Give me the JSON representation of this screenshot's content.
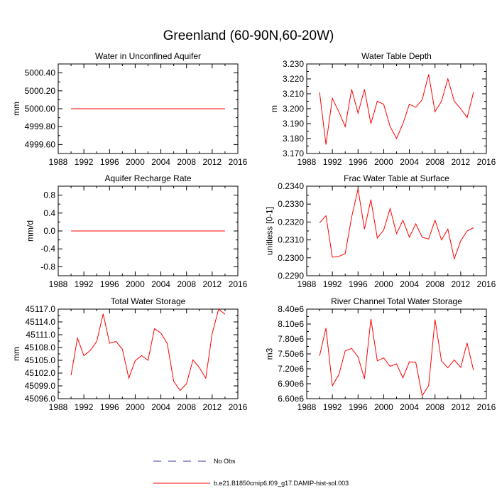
{
  "figure": {
    "title": "Greenland (60-90N,60-20W)",
    "legend": [
      {
        "label": "No Obs",
        "style": "dashed",
        "color": "#3333aa"
      },
      {
        "label": "b.e21.B1850cmip6.f09_g17.DAMIP-hist-sol.003",
        "style": "solid",
        "color": "#ff0000"
      }
    ]
  },
  "chart_data": [
    {
      "type": "line",
      "title": "Water in Unconfined Aquifer",
      "xlabel": "",
      "ylabel": "mm",
      "xlim": [
        1988,
        2016
      ],
      "ylim": [
        4999.5,
        5000.5
      ],
      "xticks": [
        1988,
        1992,
        1996,
        2000,
        2004,
        2008,
        2012,
        2016
      ],
      "yticks": [
        4999.6,
        4999.8,
        5000.0,
        5000.2,
        5000.4
      ],
      "ytick_labels": [
        "4999.60",
        "4999.80",
        "5000.00",
        "5000.20",
        "5000.40"
      ],
      "series": [
        {
          "color": "#ff0000",
          "x": [
            1990,
            2014
          ],
          "y": [
            5000.0,
            5000.0
          ]
        }
      ]
    },
    {
      "type": "line",
      "title": "Water Table Depth",
      "xlabel": "",
      "ylabel": "m",
      "xlim": [
        1988,
        2016
      ],
      "ylim": [
        3.17,
        3.23
      ],
      "xticks": [
        1988,
        1992,
        1996,
        2000,
        2004,
        2008,
        2012,
        2016
      ],
      "yticks": [
        3.17,
        3.18,
        3.19,
        3.2,
        3.21,
        3.22,
        3.23
      ],
      "ytick_labels": [
        "3.170",
        "3.180",
        "3.190",
        "3.200",
        "3.210",
        "3.220",
        "3.230"
      ],
      "series": [
        {
          "color": "#ff0000",
          "x": [
            1990,
            1991,
            1992,
            1993,
            1994,
            1995,
            1996,
            1997,
            1998,
            1999,
            2000,
            2001,
            2002,
            2003,
            2004,
            2005,
            2006,
            2007,
            2008,
            2009,
            2010,
            2011,
            2012,
            2013,
            2014
          ],
          "y": [
            3.211,
            3.176,
            3.207,
            3.198,
            3.188,
            3.213,
            3.197,
            3.213,
            3.19,
            3.205,
            3.203,
            3.188,
            3.18,
            3.19,
            3.203,
            3.201,
            3.206,
            3.223,
            3.198,
            3.205,
            3.22,
            3.205,
            3.2,
            3.194,
            3.211
          ]
        }
      ]
    },
    {
      "type": "line",
      "title": "Aquifer Recharge Rate",
      "xlabel": "",
      "ylabel": "mm/d",
      "xlim": [
        1988,
        2016
      ],
      "ylim": [
        -1.0,
        1.0
      ],
      "xticks": [
        1988,
        1992,
        1996,
        2000,
        2004,
        2008,
        2012,
        2016
      ],
      "yticks": [
        -0.8,
        -0.4,
        0.0,
        0.4,
        0.8
      ],
      "ytick_labels": [
        "-0.8",
        "-0.4",
        "0.0",
        "0.4",
        "0.8"
      ],
      "series": [
        {
          "color": "#ff0000",
          "x": [
            1990,
            2014
          ],
          "y": [
            0.0,
            0.0
          ]
        }
      ]
    },
    {
      "type": "line",
      "title": "Frac Water Table at Surface",
      "xlabel": "",
      "ylabel": "unitless [0-1]",
      "xlim": [
        1988,
        2016
      ],
      "ylim": [
        0.229,
        0.234
      ],
      "xticks": [
        1988,
        1992,
        1996,
        2000,
        2004,
        2008,
        2012,
        2016
      ],
      "yticks": [
        0.229,
        0.23,
        0.231,
        0.232,
        0.233,
        0.234
      ],
      "ytick_labels": [
        "0.2290",
        "0.2300",
        "0.2310",
        "0.2320",
        "0.2330",
        "0.2340"
      ],
      "series": [
        {
          "color": "#ff0000",
          "x": [
            1990,
            1991,
            1992,
            1993,
            1994,
            1995,
            1996,
            1997,
            1998,
            1999,
            2000,
            2001,
            2002,
            2003,
            2004,
            2005,
            2006,
            2007,
            2008,
            2009,
            2010,
            2011,
            2012,
            2013,
            2014
          ],
          "y": [
            0.23195,
            0.23235,
            0.23003,
            0.23008,
            0.23023,
            0.23228,
            0.23385,
            0.2316,
            0.23325,
            0.2311,
            0.23155,
            0.23275,
            0.23135,
            0.2321,
            0.23115,
            0.2319,
            0.23115,
            0.23105,
            0.2321,
            0.231,
            0.2316,
            0.22995,
            0.23095,
            0.2315,
            0.23168
          ]
        }
      ]
    },
    {
      "type": "line",
      "title": "Total Water Storage",
      "xlabel": "",
      "ylabel": "mm",
      "xlim": [
        1988,
        2016
      ],
      "ylim": [
        45096,
        45117
      ],
      "xticks": [
        1988,
        1992,
        1996,
        2000,
        2004,
        2008,
        2012,
        2016
      ],
      "yticks": [
        45096,
        45099,
        45102,
        45105,
        45108,
        45111,
        45114,
        45117
      ],
      "ytick_labels": [
        "45096.0",
        "45099.0",
        "45102.0",
        "45105.0",
        "45108.0",
        "45111.0",
        "45114.0",
        "45117.0"
      ],
      "series": [
        {
          "color": "#ff0000",
          "x": [
            1990,
            1991,
            1992,
            1993,
            1994,
            1995,
            1996,
            1997,
            1998,
            1999,
            2000,
            2001,
            2002,
            2003,
            2004,
            2005,
            2006,
            2007,
            2008,
            2009,
            2010,
            2011,
            2012,
            2013,
            2014
          ],
          "y": [
            45101.5,
            45110.2,
            45106.1,
            45107.3,
            45109.4,
            45115.9,
            45109.0,
            45109.4,
            45107.6,
            45100.8,
            45104.9,
            45106.1,
            45105.0,
            45112.4,
            45111.4,
            45108.9,
            45100.1,
            45097.9,
            45099.5,
            45105.1,
            45103.3,
            45100.8,
            45111.3,
            45117.0,
            45115.8
          ]
        }
      ]
    },
    {
      "type": "line",
      "title": "River Channel Total Water Storage",
      "xlabel": "",
      "ylabel": "m3",
      "xlim": [
        1988,
        2016
      ],
      "ylim": [
        6600000,
        8400000
      ],
      "xticks": [
        1988,
        1992,
        1996,
        2000,
        2004,
        2008,
        2012,
        2016
      ],
      "yticks": [
        6600000,
        6900000,
        7200000,
        7500000,
        7800000,
        8100000,
        8400000
      ],
      "ytick_labels": [
        "6.60e6",
        "6.90e6",
        "7.20e6",
        "7.50e6",
        "7.80e6",
        "8.10e6",
        "8.40e6"
      ],
      "series": [
        {
          "color": "#ff0000",
          "x": [
            1990,
            1991,
            1992,
            1993,
            1994,
            1995,
            1996,
            1997,
            1998,
            1999,
            2000,
            2001,
            2002,
            2003,
            2004,
            2005,
            2006,
            2007,
            2008,
            2009,
            2010,
            2011,
            2012,
            2013,
            2014
          ],
          "y": [
            7460000,
            8020000,
            6860000,
            7080000,
            7560000,
            7610000,
            7440000,
            7000000,
            8200000,
            7360000,
            7420000,
            7250000,
            7300000,
            7020000,
            7340000,
            7330000,
            6660000,
            6860000,
            8190000,
            7360000,
            7220000,
            7380000,
            7230000,
            7720000,
            7170000
          ]
        }
      ]
    }
  ]
}
